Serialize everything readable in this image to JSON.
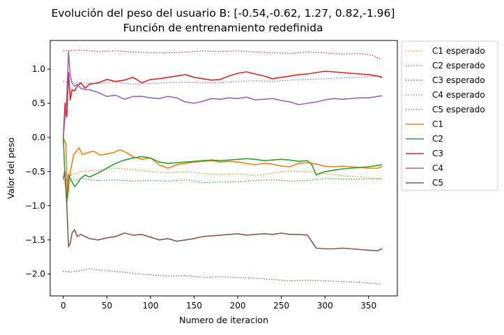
{
  "chart_data": {
    "type": "line",
    "title": "Evolución del peso del usuario B: [-0.54,-0.62, 1.27, 0.82,-1.96]",
    "subtitle": "Función de entrenamiento redefinida",
    "xlabel": "Numero de iteracion",
    "ylabel": "Valor del peso",
    "xlim": [
      -15,
      383
    ],
    "ylim": [
      -2.32,
      1.42
    ],
    "xticks": [
      0,
      50,
      100,
      150,
      200,
      250,
      300,
      350
    ],
    "yticks": [
      -2.0,
      -1.5,
      -1.0,
      -0.5,
      0.0,
      0.5,
      1.0
    ],
    "xtick_labels": [
      "0",
      "50",
      "100",
      "150",
      "200",
      "250",
      "300",
      "350"
    ],
    "ytick_labels": [
      "−2.0",
      "−1.5",
      "−1.0",
      "−0.5",
      "0.0",
      "0.5",
      "1.0"
    ],
    "grid": false,
    "legend_position": "outside-right",
    "series": [
      {
        "name": "C1 esperado",
        "color": "#ff7f0e",
        "style": "dotted",
        "x": [
          0,
          10,
          20,
          40,
          60,
          80,
          100,
          120,
          140,
          160,
          180,
          200,
          220,
          240,
          260,
          280,
          300,
          320,
          340,
          365
        ],
        "y": [
          -0.52,
          -0.55,
          -0.5,
          -0.48,
          -0.45,
          -0.47,
          -0.5,
          -0.52,
          -0.5,
          -0.53,
          -0.54,
          -0.53,
          -0.56,
          -0.52,
          -0.49,
          -0.5,
          -0.53,
          -0.56,
          -0.58,
          -0.61
        ]
      },
      {
        "name": "C2 esperado",
        "color": "#2ca02c",
        "style": "dotted",
        "x": [
          0,
          10,
          20,
          40,
          60,
          80,
          100,
          120,
          140,
          160,
          180,
          200,
          220,
          240,
          260,
          280,
          300,
          320,
          340,
          365
        ],
        "y": [
          -0.62,
          -0.64,
          -0.6,
          -0.63,
          -0.62,
          -0.64,
          -0.63,
          -0.64,
          -0.62,
          -0.66,
          -0.65,
          -0.65,
          -0.63,
          -0.62,
          -0.64,
          -0.63,
          -0.6,
          -0.61,
          -0.61,
          -0.6
        ]
      },
      {
        "name": "C3 esperado",
        "color": "#d62728",
        "style": "dotted",
        "x": [
          0,
          20,
          40,
          60,
          80,
          100,
          120,
          140,
          160,
          180,
          200,
          220,
          240,
          260,
          280,
          300,
          320,
          340,
          355,
          365
        ],
        "y": [
          1.27,
          1.28,
          1.26,
          1.27,
          1.25,
          1.24,
          1.24,
          1.25,
          1.27,
          1.26,
          1.27,
          1.25,
          1.24,
          1.23,
          1.25,
          1.24,
          1.22,
          1.23,
          1.2,
          1.14
        ]
      },
      {
        "name": "C4 esperado",
        "color": "#9467bd",
        "style": "dotted",
        "x": [
          0,
          20,
          40,
          60,
          80,
          100,
          120,
          140,
          160,
          180,
          200,
          220,
          240,
          260,
          280,
          300,
          320,
          340,
          365
        ],
        "y": [
          0.82,
          0.8,
          0.79,
          0.81,
          0.78,
          0.79,
          0.8,
          0.81,
          0.8,
          0.8,
          0.82,
          0.83,
          0.82,
          0.84,
          0.85,
          0.86,
          0.87,
          0.88,
          0.9
        ]
      },
      {
        "name": "C5 esperado",
        "color": "#8c564b",
        "style": "dotted",
        "x": [
          0,
          10,
          20,
          30,
          40,
          60,
          80,
          100,
          120,
          140,
          160,
          180,
          200,
          220,
          240,
          260,
          280,
          300,
          320,
          340,
          365
        ],
        "y": [
          -1.96,
          -1.97,
          -1.95,
          -1.92,
          -1.94,
          -1.96,
          -1.99,
          -2.01,
          -2.03,
          -2.02,
          -2.05,
          -2.04,
          -2.05,
          -2.06,
          -2.08,
          -2.1,
          -2.09,
          -2.1,
          -2.11,
          -2.12,
          -2.15
        ]
      },
      {
        "name": "C1",
        "color": "#ff7f0e",
        "style": "solid",
        "x": [
          0,
          3,
          5,
          8,
          12,
          15,
          18,
          22,
          28,
          35,
          42,
          50,
          58,
          65,
          72,
          80,
          90,
          100,
          110,
          120,
          130,
          140,
          150,
          160,
          170,
          180,
          190,
          200,
          210,
          220,
          230,
          240,
          250,
          260,
          270,
          280,
          290,
          300,
          310,
          320,
          330,
          340,
          350,
          360,
          365
        ],
        "y": [
          0.0,
          -0.1,
          -0.9,
          -0.5,
          -0.25,
          -0.2,
          -0.15,
          -0.25,
          -0.22,
          -0.2,
          -0.26,
          -0.24,
          -0.22,
          -0.18,
          -0.22,
          -0.28,
          -0.32,
          -0.3,
          -0.4,
          -0.45,
          -0.4,
          -0.38,
          -0.36,
          -0.35,
          -0.34,
          -0.36,
          -0.35,
          -0.36,
          -0.38,
          -0.4,
          -0.38,
          -0.39,
          -0.42,
          -0.43,
          -0.38,
          -0.37,
          -0.39,
          -0.42,
          -0.43,
          -0.42,
          -0.43,
          -0.44,
          -0.45,
          -0.45,
          -0.43
        ]
      },
      {
        "name": "C2",
        "color": "#2ca02c",
        "style": "solid",
        "x": [
          0,
          2,
          4,
          6,
          8,
          10,
          13,
          16,
          20,
          25,
          30,
          40,
          50,
          60,
          70,
          80,
          90,
          100,
          110,
          120,
          130,
          140,
          150,
          160,
          170,
          180,
          190,
          200,
          210,
          220,
          230,
          240,
          250,
          260,
          270,
          280,
          285,
          290,
          300,
          310,
          320,
          330,
          340,
          350,
          360,
          365
        ],
        "y": [
          0.0,
          -0.6,
          -0.95,
          -0.55,
          -0.6,
          -0.65,
          -0.72,
          -0.68,
          -0.6,
          -0.55,
          -0.58,
          -0.52,
          -0.45,
          -0.38,
          -0.33,
          -0.3,
          -0.28,
          -0.3,
          -0.36,
          -0.38,
          -0.37,
          -0.36,
          -0.35,
          -0.34,
          -0.33,
          -0.34,
          -0.33,
          -0.32,
          -0.31,
          -0.32,
          -0.34,
          -0.33,
          -0.32,
          -0.33,
          -0.35,
          -0.34,
          -0.4,
          -0.55,
          -0.5,
          -0.48,
          -0.46,
          -0.45,
          -0.44,
          -0.43,
          -0.41,
          -0.4
        ]
      },
      {
        "name": "C3",
        "color": "#d62728",
        "style": "solid",
        "x": [
          0,
          2,
          4,
          6,
          8,
          10,
          13,
          16,
          20,
          25,
          30,
          40,
          50,
          60,
          70,
          80,
          90,
          100,
          110,
          120,
          130,
          140,
          150,
          160,
          170,
          180,
          190,
          200,
          210,
          220,
          230,
          240,
          250,
          260,
          270,
          280,
          290,
          300,
          310,
          320,
          330,
          340,
          350,
          360,
          365
        ],
        "y": [
          0.0,
          0.5,
          0.3,
          0.95,
          0.55,
          0.7,
          0.68,
          0.75,
          0.8,
          0.72,
          0.78,
          0.8,
          0.85,
          0.82,
          0.84,
          0.88,
          0.8,
          0.85,
          0.86,
          0.88,
          0.9,
          0.92,
          0.88,
          0.86,
          0.84,
          0.85,
          0.9,
          0.94,
          0.96,
          0.93,
          0.9,
          0.86,
          0.88,
          0.9,
          0.92,
          0.93,
          0.95,
          0.97,
          0.96,
          0.95,
          0.94,
          0.93,
          0.92,
          0.9,
          0.88
        ]
      },
      {
        "name": "C4",
        "color": "#9467bd",
        "style": "solid",
        "x": [
          0,
          2,
          4,
          6,
          8,
          10,
          13,
          16,
          20,
          25,
          30,
          40,
          50,
          60,
          70,
          80,
          90,
          100,
          110,
          120,
          130,
          140,
          150,
          160,
          170,
          180,
          190,
          200,
          210,
          220,
          230,
          240,
          250,
          260,
          270,
          280,
          290,
          300,
          310,
          320,
          330,
          340,
          350,
          360,
          365
        ],
        "y": [
          0.0,
          0.3,
          0.6,
          1.26,
          0.9,
          0.8,
          0.75,
          0.78,
          0.72,
          0.7,
          0.7,
          0.66,
          0.6,
          0.62,
          0.56,
          0.6,
          0.6,
          0.58,
          0.57,
          0.6,
          0.58,
          0.52,
          0.5,
          0.53,
          0.57,
          0.56,
          0.58,
          0.57,
          0.59,
          0.55,
          0.56,
          0.57,
          0.54,
          0.52,
          0.48,
          0.5,
          0.52,
          0.55,
          0.57,
          0.56,
          0.57,
          0.58,
          0.58,
          0.6,
          0.61
        ]
      },
      {
        "name": "C5",
        "color": "#8c564b",
        "style": "solid",
        "x": [
          0,
          2,
          4,
          6,
          8,
          10,
          13,
          16,
          20,
          25,
          30,
          40,
          50,
          60,
          70,
          80,
          90,
          100,
          110,
          120,
          130,
          140,
          150,
          160,
          170,
          180,
          190,
          200,
          210,
          220,
          230,
          240,
          250,
          260,
          270,
          280,
          290,
          300,
          310,
          320,
          330,
          340,
          350,
          360,
          365
        ],
        "y": [
          -0.6,
          -0.5,
          -1.0,
          -1.6,
          -1.55,
          -1.4,
          -1.35,
          -1.45,
          -1.42,
          -1.45,
          -1.48,
          -1.5,
          -1.47,
          -1.45,
          -1.4,
          -1.43,
          -1.42,
          -1.46,
          -1.5,
          -1.48,
          -1.52,
          -1.5,
          -1.48,
          -1.45,
          -1.44,
          -1.43,
          -1.42,
          -1.41,
          -1.43,
          -1.42,
          -1.41,
          -1.42,
          -1.4,
          -1.42,
          -1.42,
          -1.43,
          -1.62,
          -1.63,
          -1.63,
          -1.62,
          -1.63,
          -1.64,
          -1.65,
          -1.66,
          -1.63
        ]
      }
    ]
  }
}
